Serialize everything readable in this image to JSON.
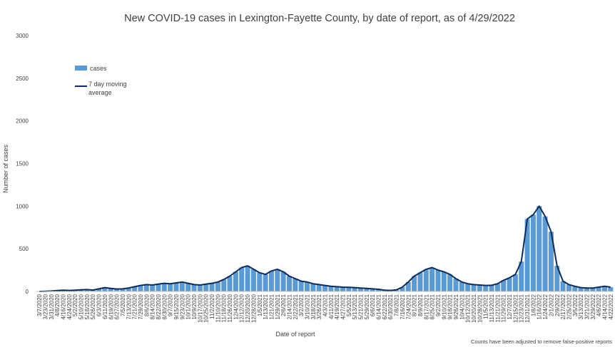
{
  "chart_data": {
    "type": "bar",
    "title": "New COVID-19 cases in Lexington-Fayette County, by date of report, as of 4/29/2022",
    "xlabel": "Date of report",
    "ylabel": "Number of cases",
    "ylim": [
      0,
      3000
    ],
    "yticks": [
      "0",
      "500",
      "1000",
      "1500",
      "2000",
      "2500",
      "3000"
    ],
    "grid": false,
    "legend_position": "top-left",
    "note": "Counts have been adjusted to remove false-positive reports",
    "colors": {
      "bars": "#5b9bd5",
      "line": "#0d2a5c"
    },
    "x_tick_labels": [
      "3/7/2020",
      "3/23/2020",
      "3/31/2020",
      "4/8/2020",
      "4/16/2020",
      "4/24/2020",
      "5/2/2020",
      "5/10/2020",
      "5/18/2020",
      "5/26/2020",
      "6/3/2020",
      "6/11/2020",
      "6/19/2020",
      "6/27/2020",
      "7/5/2020",
      "7/13/2020",
      "7/21/2020",
      "7/29/2020",
      "8/6/2020",
      "8/14/2020",
      "8/22/2020",
      "8/30/2020",
      "9/7/2020",
      "9/15/2020",
      "9/23/2020",
      "10/1/2020",
      "10/9/2020",
      "10/17/2020",
      "10/25/2020",
      "11/2/2020",
      "11/10/2020",
      "11/18/2020",
      "11/26/2020",
      "12/4/2020",
      "12/12/2020",
      "12/20/2020",
      "12/28/2020",
      "1/5/2021",
      "1/13/2021",
      "1/21/2021",
      "1/29/2021",
      "2/6/2021",
      "2/14/2021",
      "2/22/2021",
      "3/2/2021",
      "3/10/2021",
      "3/18/2021",
      "3/26/2021",
      "4/3/2021",
      "4/11/2021",
      "4/19/2021",
      "4/27/2021",
      "5/5/2021",
      "5/13/2021",
      "5/21/2021",
      "5/29/2021",
      "6/6/2021",
      "6/14/2021",
      "6/22/2021",
      "6/30/2021",
      "7/8/2021",
      "7/16/2021",
      "7/24/2021",
      "8/1/2021",
      "8/9/2021",
      "8/17/2021",
      "8/25/2021",
      "9/2/2021",
      "9/10/2021",
      "9/18/2021",
      "9/26/2021",
      "10/4/2021",
      "10/12/2021",
      "10/20/2021",
      "10/28/2021",
      "11/5/2021",
      "11/13/2021",
      "11/21/2021",
      "11/29/2021",
      "12/7/2021",
      "12/15/2021",
      "12/23/2021",
      "12/31/2021",
      "1/8/2022",
      "1/16/2022",
      "1/24/2022",
      "2/1/2022",
      "2/9/2022",
      "2/17/2022",
      "2/25/2022",
      "3/5/2022",
      "3/13/2022",
      "3/21/2022",
      "3/29/2022",
      "4/6/2022",
      "4/14/2022",
      "4/22/2022"
    ],
    "series": [
      {
        "name": "cases",
        "type": "bar",
        "values": [
          0,
          2,
          5,
          10,
          15,
          12,
          14,
          18,
          22,
          16,
          30,
          45,
          35,
          28,
          30,
          40,
          55,
          70,
          80,
          75,
          85,
          95,
          90,
          100,
          110,
          95,
          80,
          75,
          85,
          95,
          110,
          140,
          180,
          230,
          280,
          300,
          260,
          220,
          200,
          240,
          260,
          230,
          180,
          150,
          120,
          110,
          90,
          80,
          70,
          60,
          55,
          50,
          48,
          45,
          40,
          35,
          30,
          25,
          15,
          12,
          18,
          50,
          110,
          180,
          220,
          260,
          280,
          250,
          230,
          200,
          150,
          110,
          90,
          80,
          75,
          70,
          72,
          90,
          130,
          160,
          200,
          350,
          850,
          900,
          1000,
          880,
          700,
          300,
          120,
          80,
          60,
          45,
          40,
          40,
          50,
          60,
          50
        ]
      },
      {
        "name": "7 day moving average",
        "type": "line",
        "values": [
          0,
          2,
          5,
          10,
          15,
          12,
          14,
          18,
          22,
          16,
          30,
          45,
          35,
          28,
          30,
          40,
          55,
          70,
          80,
          75,
          85,
          95,
          90,
          100,
          110,
          95,
          80,
          75,
          85,
          95,
          110,
          140,
          180,
          230,
          280,
          300,
          260,
          220,
          200,
          240,
          260,
          230,
          180,
          150,
          120,
          110,
          90,
          80,
          70,
          60,
          55,
          50,
          48,
          45,
          40,
          35,
          30,
          25,
          15,
          12,
          18,
          50,
          110,
          180,
          220,
          260,
          280,
          250,
          230,
          200,
          150,
          110,
          90,
          80,
          75,
          70,
          72,
          90,
          130,
          160,
          200,
          350,
          850,
          900,
          1000,
          880,
          700,
          300,
          120,
          80,
          60,
          45,
          40,
          40,
          50,
          60,
          50
        ]
      }
    ]
  }
}
